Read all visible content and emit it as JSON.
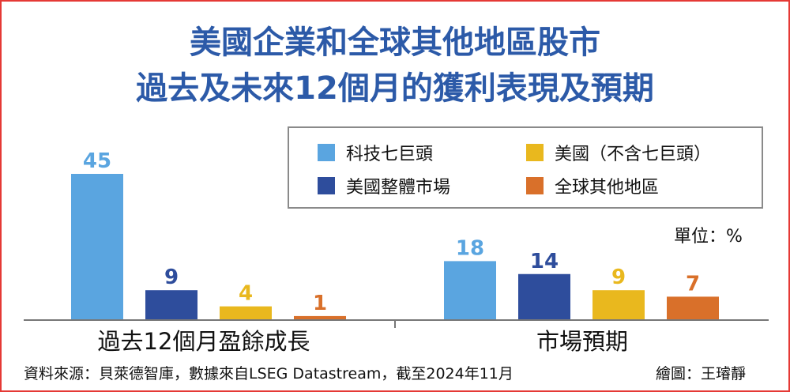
{
  "title_line1": "美國企業和全球其他地區股市",
  "title_line2": "過去及未來12個月的獲利表現及預期",
  "unit_label": "單位：%",
  "source_note": "資料來源：貝萊德智庫，數據來自LSEG Datastream，截至2024年11月",
  "credit": "繪圖：王璿靜",
  "chart_data": {
    "type": "bar",
    "categories": [
      "過去12個月盈餘成長",
      "市場預期"
    ],
    "series": [
      {
        "name": "科技七巨頭",
        "color": "#5aa5e0",
        "values": [
          45,
          18
        ]
      },
      {
        "name": "美國整體市場",
        "color": "#2e4d9c",
        "values": [
          9,
          14
        ]
      },
      {
        "name": "美國（不含七巨頭）",
        "color": "#e9b81e",
        "values": [
          4,
          9
        ]
      },
      {
        "name": "全球其他地區",
        "color": "#d9702a",
        "values": [
          1,
          7
        ]
      }
    ],
    "ylim": [
      0,
      50
    ],
    "legend_position": "top-right"
  }
}
